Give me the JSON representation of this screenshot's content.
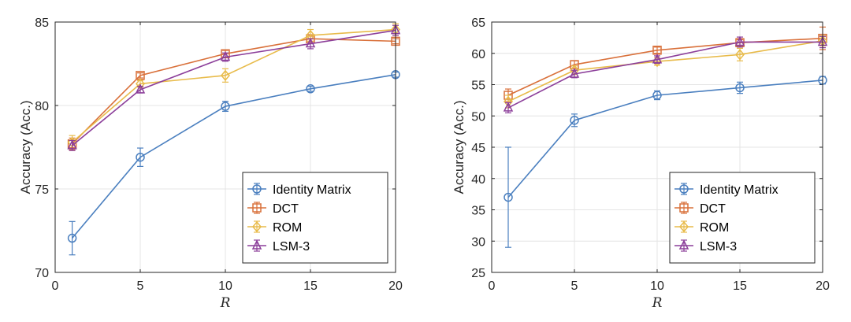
{
  "chart_data": [
    {
      "type": "line",
      "title": "",
      "xlabel": "R",
      "ylabel": "Accuracy (Acc.)",
      "xlim": [
        0,
        20
      ],
      "ylim": [
        70,
        85
      ],
      "xticks": [
        0,
        5,
        10,
        15,
        20
      ],
      "yticks": [
        70,
        75,
        80,
        85
      ],
      "grid": true,
      "legend_position": "bottom-right",
      "x": [
        1,
        5,
        10,
        15,
        20
      ],
      "series": [
        {
          "name": "Identity Matrix",
          "color": "#4a7fbf",
          "marker": "circle",
          "values": [
            72.05,
            76.9,
            79.95,
            81.0,
            81.85
          ],
          "errors": [
            1.0,
            0.55,
            0.3,
            0.15,
            0.15
          ]
        },
        {
          "name": "DCT",
          "color": "#d9703a",
          "marker": "square",
          "values": [
            77.7,
            81.8,
            83.1,
            84.0,
            83.85
          ],
          "errors": [
            0.35,
            0.15,
            0.2,
            0.15,
            0.15
          ]
        },
        {
          "name": "ROM",
          "color": "#e8bb4a",
          "marker": "diamond",
          "values": [
            77.8,
            81.3,
            81.8,
            84.2,
            84.55
          ],
          "errors": [
            0.4,
            0.2,
            0.4,
            0.35,
            0.35
          ]
        },
        {
          "name": "LSM-3",
          "color": "#8c3f9a",
          "marker": "triangle",
          "values": [
            77.6,
            80.95,
            82.9,
            83.7,
            84.5
          ],
          "errors": [
            0.3,
            0.2,
            0.25,
            0.3,
            0.3
          ]
        }
      ]
    },
    {
      "type": "line",
      "title": "",
      "xlabel": "R",
      "ylabel": "Accuracy (Acc.)",
      "xlim": [
        0,
        20
      ],
      "ylim": [
        25,
        65
      ],
      "xticks": [
        0,
        5,
        10,
        15,
        20
      ],
      "yticks": [
        25,
        30,
        35,
        40,
        45,
        50,
        55,
        60,
        65
      ],
      "grid": true,
      "legend_position": "bottom-right",
      "x": [
        1,
        5,
        10,
        15,
        20
      ],
      "series": [
        {
          "name": "Identity Matrix",
          "color": "#4a7fbf",
          "marker": "circle",
          "values": [
            37.0,
            49.3,
            53.3,
            54.5,
            55.7
          ],
          "errors": [
            8.0,
            1.0,
            0.7,
            0.9,
            0.6
          ]
        },
        {
          "name": "DCT",
          "color": "#d9703a",
          "marker": "square",
          "values": [
            53.3,
            58.2,
            60.5,
            61.7,
            62.4
          ],
          "errors": [
            1.0,
            0.6,
            0.5,
            0.5,
            1.8
          ]
        },
        {
          "name": "ROM",
          "color": "#e8bb4a",
          "marker": "diamond",
          "values": [
            52.3,
            57.3,
            58.7,
            59.8,
            62.0
          ],
          "errors": [
            1.0,
            0.7,
            0.6,
            1.0,
            0.8
          ]
        },
        {
          "name": "LSM-3",
          "color": "#8c3f9a",
          "marker": "triangle",
          "values": [
            51.3,
            56.7,
            59.0,
            61.8,
            61.8
          ],
          "errors": [
            0.8,
            0.6,
            0.6,
            0.8,
            0.9
          ]
        }
      ]
    }
  ]
}
